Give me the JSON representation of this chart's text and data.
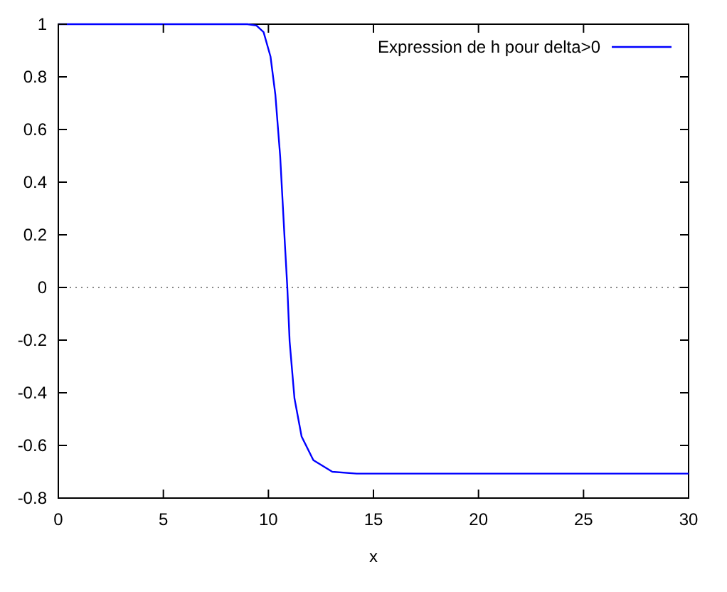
{
  "chart_data": {
    "type": "line",
    "xlabel": "x",
    "series": [
      {
        "name": "Expression de h pour delta>0",
        "color": "#0000ff",
        "x": [
          0,
          5,
          9,
          9.43,
          9.77,
          10.1,
          10.33,
          10.56,
          10.79,
          10.9,
          11.01,
          11.24,
          11.58,
          12.14,
          13.04,
          14.2,
          20,
          25,
          30
        ],
        "values": [
          1,
          1,
          1,
          0.995,
          0.97,
          0.877,
          0.733,
          0.498,
          0.157,
          0,
          -0.205,
          -0.421,
          -0.566,
          -0.656,
          -0.7,
          -0.707,
          -0.707,
          -0.707,
          -0.707
        ]
      }
    ],
    "xlim": [
      0,
      30
    ],
    "xticks": [
      0,
      5,
      10,
      15,
      20,
      25,
      30
    ],
    "ylim": [
      -0.8,
      1
    ],
    "yticks": [
      -0.8,
      -0.6,
      -0.4,
      -0.2,
      0,
      0.2,
      0.4,
      0.6,
      0.8,
      1
    ],
    "ref_lines": [
      {
        "axis": "y",
        "value": 0,
        "color": "#888888",
        "line_style": "dotted"
      }
    ],
    "legend": "top right",
    "marker": "none",
    "line_style": "solid",
    "grid": false
  }
}
